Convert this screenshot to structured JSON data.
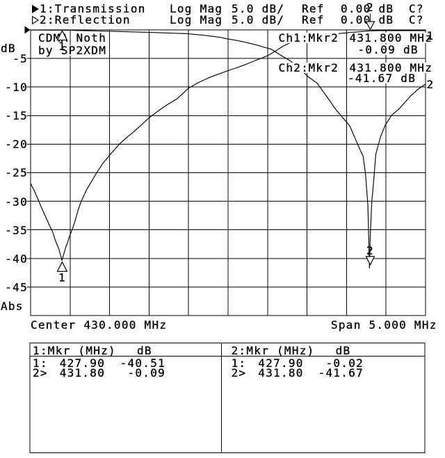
{
  "window": {
    "bg": "#ffffff",
    "fg": "#000000"
  },
  "header": {
    "ch1": {
      "marker_arrow": "filled-right-triangle-icon",
      "label": "1:Transmission",
      "format": "Log Mag",
      "scale": "5.0 dB/",
      "ref_label": "Ref",
      "ref_value": "0.00 dB",
      "cal_status": "C?"
    },
    "ch2": {
      "marker_arrow": "hollow-right-triangle-icon",
      "label": "2:Reflection",
      "format": "Log Mag",
      "scale": "5.0 dB/",
      "ref_label": "Ref",
      "ref_value": "0.00 dB",
      "cal_status": "C?"
    }
  },
  "y_axis": {
    "unit": "dB",
    "ticks": [
      "-5",
      "-10",
      "-15",
      "-20",
      "-25",
      "-30",
      "-35",
      "-40",
      "-45"
    ],
    "bottom_label": "Abs"
  },
  "x_axis": {
    "center_label": "Center 430.000 MHz",
    "span_label": "Span 5.000 MHz"
  },
  "title_box": {
    "line1": [
      "CDMA",
      "Noth"
    ],
    "line2": [
      "by",
      "SP2XDM"
    ]
  },
  "readouts": {
    "ch1": {
      "channel": "Ch1:",
      "marker": "Mkr2",
      "frequency": "431.800",
      "frequency_unit": "MHz",
      "value": "-0.09",
      "value_unit": "dB"
    },
    "ch2": {
      "channel": "Ch2:",
      "marker": "Mkr2",
      "frequency": "431.800",
      "frequency_unit": "MHz",
      "value": "-41.67",
      "value_unit": "dB"
    }
  },
  "trace_labels": {
    "trace1": "1",
    "trace2": "2"
  },
  "marker_table": {
    "left": {
      "header_col1": "1:Mkr (MHz)",
      "header_col2": "dB",
      "rows": [
        {
          "n": "1:",
          "freq": "427.90",
          "db": "-40.51"
        },
        {
          "n": "2>",
          "freq": "431.80",
          "db": "-0.09"
        }
      ]
    },
    "right": {
      "header_col1": "2:Mkr (MHz)",
      "header_col2": "dB",
      "rows": [
        {
          "n": "1:",
          "freq": "427.90",
          "db": "-0.02"
        },
        {
          "n": "2>",
          "freq": "431.80",
          "db": "-41.67"
        }
      ]
    }
  },
  "chart_data": {
    "type": "line",
    "title": "CDMA Noth by SP2XDM",
    "x": {
      "label": "MHz",
      "center": 430.0,
      "span": 5.0,
      "min": 427.5,
      "max": 432.5,
      "divisions": 10
    },
    "y": {
      "label": "dB",
      "ref_db": 0.0,
      "db_per_div": 5.0,
      "min": -50,
      "max": 0,
      "divisions": 10
    },
    "grid": true,
    "series": [
      {
        "name": "Transmission",
        "channel": 1,
        "points": [
          [
            427.5,
            -26.89
          ],
          [
            427.553,
            -28.35
          ],
          [
            427.606,
            -30.05
          ],
          [
            427.65,
            -31.51
          ],
          [
            427.694,
            -32.85
          ],
          [
            427.738,
            -34.18
          ],
          [
            427.777,
            -35.28
          ],
          [
            427.808,
            -36.62
          ],
          [
            427.835,
            -37.59
          ],
          [
            427.857,
            -38.32
          ],
          [
            427.874,
            -39.17
          ],
          [
            427.887,
            -39.78
          ],
          [
            427.896,
            -40.33
          ],
          [
            427.905,
            -40.02
          ],
          [
            427.914,
            -39.54
          ],
          [
            427.927,
            -38.93
          ],
          [
            427.945,
            -38.08
          ],
          [
            427.967,
            -37.23
          ],
          [
            427.993,
            -36.13
          ],
          [
            428.028,
            -34.91
          ],
          [
            428.063,
            -33.45
          ],
          [
            428.099,
            -31.63
          ],
          [
            428.143,
            -29.93
          ],
          [
            428.213,
            -27.86
          ],
          [
            428.283,
            -26.28
          ],
          [
            428.345,
            -24.82
          ],
          [
            428.415,
            -23.36
          ],
          [
            428.495,
            -22.02
          ],
          [
            428.565,
            -20.92
          ],
          [
            428.627,
            -19.95
          ],
          [
            428.715,
            -18.86
          ],
          [
            428.803,
            -17.88
          ],
          [
            428.899,
            -16.67
          ],
          [
            428.996,
            -15.45
          ],
          [
            429.11,
            -14.23
          ],
          [
            429.225,
            -13.14
          ],
          [
            429.357,
            -12.04
          ],
          [
            429.498,
            -10.22
          ],
          [
            429.621,
            -9.25
          ],
          [
            429.754,
            -8.39
          ],
          [
            429.868,
            -7.79
          ],
          [
            429.991,
            -7.18
          ],
          [
            430.097,
            -6.69
          ],
          [
            430.194,
            -6.2
          ],
          [
            430.282,
            -5.72
          ],
          [
            430.37,
            -5.23
          ],
          [
            430.44,
            -4.87
          ],
          [
            430.502,
            -4.5
          ],
          [
            430.563,
            -4.01
          ],
          [
            430.634,
            -3.41
          ],
          [
            430.687,
            -2.92
          ],
          [
            430.74,
            -2.55
          ],
          [
            430.792,
            -2.19
          ],
          [
            430.854,
            -1.82
          ],
          [
            430.933,
            -1.46
          ],
          [
            431.012,
            -1.22
          ],
          [
            431.091,
            -1.03
          ],
          [
            431.171,
            -0.91
          ],
          [
            431.25,
            -0.85
          ],
          [
            431.338,
            -0.73
          ],
          [
            431.426,
            -0.61
          ],
          [
            431.514,
            -0.49
          ],
          [
            431.602,
            -0.4
          ],
          [
            431.69,
            -0.3
          ],
          [
            431.787,
            -0.18
          ],
          [
            431.91,
            -0.12
          ],
          [
            432.042,
            -0.12
          ],
          [
            432.218,
            -0.12
          ],
          [
            432.394,
            -0.12
          ],
          [
            432.5,
            -0.12
          ]
        ]
      },
      {
        "name": "Reflection",
        "channel": 2,
        "points": [
          [
            427.5,
            -0.02
          ],
          [
            428.0,
            -0.07
          ],
          [
            428.5,
            -0.24
          ],
          [
            429.0,
            -0.43
          ],
          [
            429.25,
            -0.55
          ],
          [
            429.49,
            -0.67
          ],
          [
            429.71,
            -0.97
          ],
          [
            429.9,
            -1.3
          ],
          [
            429.99,
            -1.58
          ],
          [
            430.1,
            -1.82
          ],
          [
            430.19,
            -2.07
          ],
          [
            430.28,
            -2.37
          ],
          [
            430.37,
            -2.68
          ],
          [
            430.46,
            -3.04
          ],
          [
            430.55,
            -3.41
          ],
          [
            430.66,
            -4.38
          ],
          [
            430.78,
            -5.35
          ],
          [
            430.9,
            -6.69
          ],
          [
            431.01,
            -8.15
          ],
          [
            431.13,
            -9.37
          ],
          [
            431.25,
            -11.68
          ],
          [
            431.36,
            -13.87
          ],
          [
            431.48,
            -15.82
          ],
          [
            431.54,
            -16.79
          ],
          [
            431.6,
            -18.73
          ],
          [
            431.65,
            -20.32
          ],
          [
            431.71,
            -22.14
          ],
          [
            431.74,
            -25.18
          ],
          [
            431.77,
            -30.66
          ],
          [
            431.78,
            -36.13
          ],
          [
            431.79,
            -41.67
          ],
          [
            431.8,
            -36.13
          ],
          [
            431.82,
            -30.05
          ],
          [
            431.84,
            -27.0
          ],
          [
            431.87,
            -21.78
          ],
          [
            431.93,
            -18.73
          ],
          [
            431.99,
            -16.67
          ],
          [
            432.07,
            -14.96
          ],
          [
            432.17,
            -13.75
          ],
          [
            432.32,
            -11.44
          ],
          [
            432.41,
            -10.34
          ],
          [
            432.5,
            -9.49
          ]
        ]
      }
    ],
    "markers": [
      {
        "trace": 1,
        "label": "1",
        "mhz": 427.9,
        "db": -40.51,
        "style": "up"
      },
      {
        "trace": 2,
        "label": "1",
        "mhz": 427.9,
        "db": -0.02,
        "style": "up"
      },
      {
        "trace": 1,
        "label": "2",
        "mhz": 431.8,
        "db": -0.09,
        "style": "down_from_top"
      },
      {
        "trace": 2,
        "label": "2",
        "mhz": 431.8,
        "db": -41.67,
        "style": "down"
      }
    ]
  }
}
